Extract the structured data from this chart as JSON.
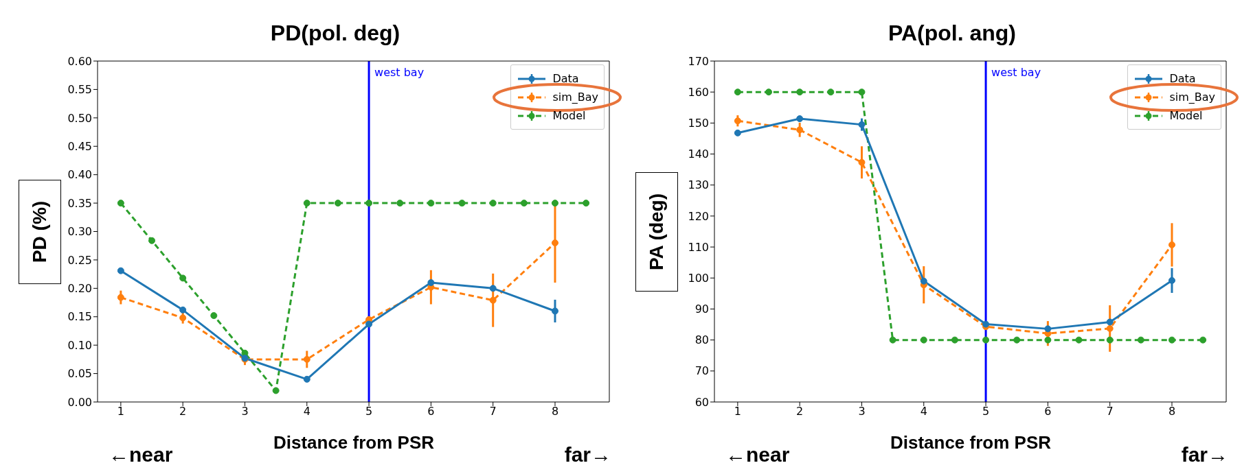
{
  "chart_data": [
    {
      "type": "line",
      "title": "PD(pol. deg)",
      "xlabel": "Distance from PSR",
      "ylabel": "PD (%)",
      "annotations": [
        "←near",
        "far→"
      ],
      "xlim": [
        0.625,
        8.875
      ],
      "xticks": [
        1,
        2,
        3,
        4,
        5,
        6,
        7,
        8
      ],
      "ylim": [
        0,
        0.6
      ],
      "yticks": [
        {
          "value": 0,
          "label": "0.00"
        },
        {
          "value": 0.05,
          "label": "0.05"
        },
        {
          "value": 0.1,
          "label": "0.10"
        },
        {
          "value": 0.15,
          "label": "0.15"
        },
        {
          "value": 0.2,
          "label": "0.20"
        },
        {
          "value": 0.25,
          "label": "0.25"
        },
        {
          "value": 0.3,
          "label": "0.30"
        },
        {
          "value": 0.35,
          "label": "0.35"
        },
        {
          "value": 0.4,
          "label": "0.40"
        },
        {
          "value": 0.45,
          "label": "0.45"
        },
        {
          "value": 0.5,
          "label": "0.50"
        },
        {
          "value": 0.55,
          "label": "0.55"
        },
        {
          "value": 0.6,
          "label": "0.60"
        }
      ],
      "legend": "top right",
      "marker": "circle",
      "ref_lines": [
        {
          "axis": "x",
          "value": 5,
          "label": "west bay",
          "color": "#0000ff"
        }
      ],
      "series": [
        {
          "name": "Data",
          "color": "#1f77b4",
          "line_style": "solid",
          "x": [
            1,
            2,
            3,
            4,
            5,
            6,
            7,
            8
          ],
          "values": [
            0.231,
            0.162,
            0.077,
            0.04,
            0.137,
            0.21,
            0.2,
            0.16
          ],
          "errors": [
            null,
            null,
            null,
            null,
            null,
            null,
            null,
            0.02
          ]
        },
        {
          "name": "sim_Bay",
          "color": "#ff7f0e",
          "line_style": "dashed",
          "x": [
            1,
            2,
            3,
            4,
            5,
            6,
            7,
            8
          ],
          "values": [
            0.184,
            0.148,
            0.075,
            0.075,
            0.145,
            0.202,
            0.179,
            0.28
          ],
          "errors": [
            0.012,
            0.01,
            0.01,
            0.015,
            0.005,
            0.03,
            0.047,
            0.07
          ]
        },
        {
          "name": "Model",
          "color": "#2ca02c",
          "line_style": "dashed",
          "x": [
            1,
            1.5,
            2,
            2.5,
            3,
            3.5,
            4,
            4.5,
            5,
            5.5,
            6,
            6.5,
            7,
            7.5,
            8,
            8.5
          ],
          "values": [
            0.35,
            0.284,
            0.218,
            0.152,
            0.086,
            0.02,
            0.35,
            0.35,
            0.35,
            0.35,
            0.35,
            0.35,
            0.35,
            0.35,
            0.35,
            0.35
          ]
        }
      ]
    },
    {
      "type": "line",
      "title": "PA(pol. ang)",
      "xlabel": "Distance from PSR",
      "ylabel": "PA (deg)",
      "annotations": [
        "←near",
        "far→"
      ],
      "xlim": [
        0.625,
        8.875
      ],
      "xticks": [
        1,
        2,
        3,
        4,
        5,
        6,
        7,
        8
      ],
      "ylim": [
        60,
        170
      ],
      "yticks": [
        60,
        70,
        80,
        90,
        100,
        110,
        120,
        130,
        140,
        150,
        160,
        170
      ],
      "legend": "top right",
      "marker": "circle",
      "ref_lines": [
        {
          "axis": "x",
          "value": 5,
          "label": "west bay",
          "color": "#0000ff"
        }
      ],
      "series": [
        {
          "name": "Data",
          "color": "#1f77b4",
          "line_style": "solid",
          "x": [
            1,
            2,
            3,
            4,
            5,
            6,
            7,
            8
          ],
          "values": [
            146.8,
            151.4,
            149.5,
            99,
            85.1,
            83.6,
            85.8,
            99.2
          ],
          "errors": [
            null,
            null,
            2,
            null,
            null,
            null,
            null,
            4
          ]
        },
        {
          "name": "sim_Bay",
          "color": "#ff7f0e",
          "line_style": "dashed",
          "x": [
            1,
            2,
            3,
            4,
            5,
            6,
            7,
            8
          ],
          "values": [
            150.7,
            147.8,
            137.3,
            97.8,
            84.3,
            82.1,
            83.7,
            110.7
          ],
          "errors": [
            1.8,
            2.3,
            5.2,
            6,
            1,
            4,
            7.5,
            7
          ]
        },
        {
          "name": "Model",
          "color": "#2ca02c",
          "line_style": "dashed",
          "x": [
            1,
            1.5,
            2,
            2.5,
            3,
            3.5,
            4,
            4.5,
            5,
            5.5,
            6,
            6.5,
            7,
            7.5,
            8,
            8.5
          ],
          "values": [
            160,
            160,
            160,
            160,
            160,
            80,
            80,
            80,
            80,
            80,
            80,
            80,
            80,
            80,
            80,
            80
          ]
        }
      ]
    }
  ]
}
